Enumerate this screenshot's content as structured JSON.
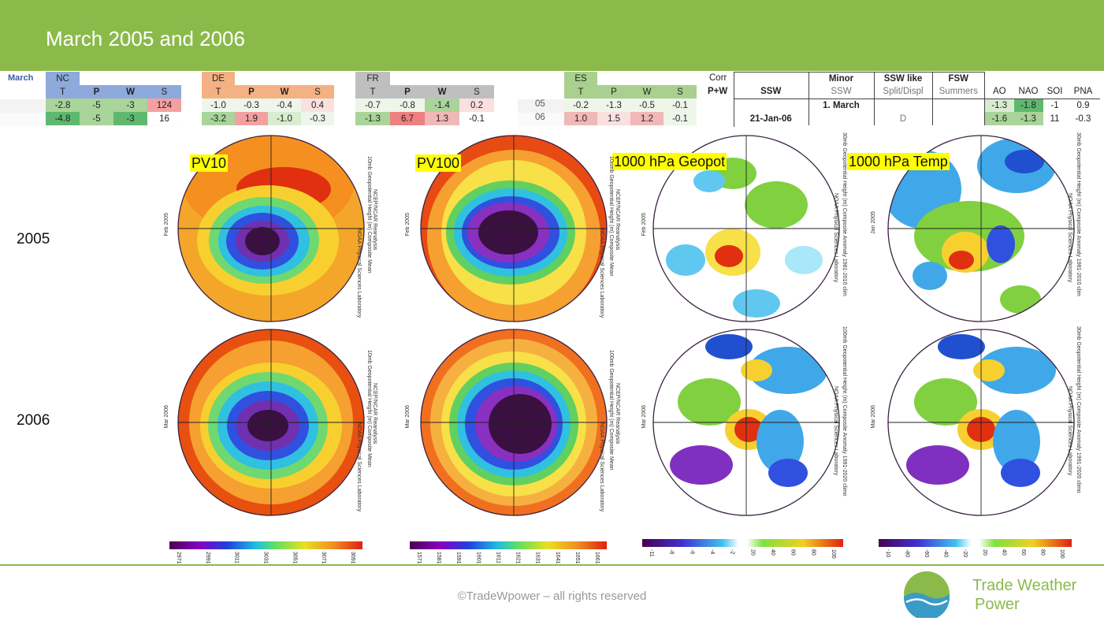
{
  "title": "March 2005 and 2006",
  "tables": {
    "nc": {
      "month_label": "March",
      "region": "NC",
      "cols": [
        "T",
        "P",
        "W",
        "S"
      ],
      "rows": [
        {
          "year": "05",
          "vals": [
            "-2.8",
            "-5",
            "-3",
            "124"
          ]
        },
        {
          "year": "06",
          "vals": [
            "-4.8",
            "-5",
            "-3",
            "16"
          ]
        }
      ]
    },
    "de": {
      "region": "DE",
      "cols": [
        "T",
        "P",
        "W",
        "S"
      ],
      "rows": [
        {
          "vals": [
            "-1.0",
            "-0.3",
            "-0.4",
            "0.4"
          ]
        },
        {
          "vals": [
            "-3.2",
            "1.9",
            "-1.0",
            "-0.3"
          ]
        }
      ]
    },
    "fr": {
      "region": "FR",
      "cols": [
        "T",
        "P",
        "W",
        "S"
      ],
      "rows": [
        {
          "vals": [
            "-0.7",
            "-0.8",
            "-1.4",
            "0.2"
          ]
        },
        {
          "vals": [
            "-1.3",
            "6.7",
            "1.3",
            "-0.1"
          ]
        }
      ]
    },
    "es": {
      "region": "ES",
      "cols": [
        "T",
        "P",
        "W",
        "S"
      ],
      "rows": [
        {
          "year": "05",
          "vals": [
            "-0.2",
            "-1.3",
            "-0.5",
            "-0.1"
          ]
        },
        {
          "year": "06",
          "vals": [
            "1.0",
            "1.5",
            "1.2",
            "-0.1"
          ]
        }
      ]
    },
    "corr": {
      "line1": "Corr",
      "line2": "P+W"
    },
    "ssw": {
      "headers": [
        "SSW",
        "Minor",
        "SSW like",
        "FSW"
      ],
      "sub": [
        "SSW",
        "SSW",
        "Split/Displ",
        "Summers"
      ],
      "row1": [
        "",
        "1. March",
        "",
        ""
      ],
      "row2": [
        "21-Jan-06",
        "",
        "D",
        ""
      ]
    },
    "indices": {
      "cols": [
        "AO",
        "NAO",
        "SOI",
        "PNA"
      ],
      "rows": [
        [
          "-1.3",
          "-1.8",
          "-1",
          "0.9"
        ],
        [
          "-1.6",
          "-1.3",
          "11",
          "-0.3"
        ]
      ]
    }
  },
  "rows": [
    "2005",
    "2006"
  ],
  "maps": {
    "titles": [
      "PV10",
      "PV100",
      "1000 hPa Geopot",
      "1000 hPa Temp"
    ],
    "dates": [
      [
        "Feb 2005",
        "Feb 2005",
        "Feb 2005",
        "Jan 2005"
      ],
      [
        "Mar 2006",
        "Mar 2006",
        "Mar 2006",
        "Mar 2006"
      ]
    ],
    "side_texts": [
      [
        "10mb Geopotential Height (m) Composite Mean",
        "10omb Geopotential Height (m) Composite Mean",
        "30mb Geopotential Height (m) Composite Anomaly 1981-2010 clim",
        "30mb Geopotential Height (m) Composite Anomaly 1981-2010 clim"
      ],
      [
        "10mb Geopotential Height (m) Composite Mean",
        "100mb Geopotential Height (m) Composite Mean",
        "100mb Geopotential Height (m) Composite Anomaly 1991-2020 climo",
        "30mb Geopotential Height (m) Composite Anomaly 1991-2020 climo"
      ]
    ],
    "reanalysis": "NCEP/NCAR Reanalysis",
    "lab": "NOAA Physical Sciences Laboratory"
  },
  "colorbars": [
    [
      "2971",
      "2991",
      "3011",
      "3031",
      "3051",
      "3071",
      "3091"
    ],
    [
      "1571",
      "1581",
      "1591",
      "1601",
      "1611",
      "1621",
      "1631",
      "1641",
      "1651",
      "1661"
    ],
    [
      "-11",
      "-8",
      "-6",
      "-4",
      "-2",
      "20",
      "40",
      "60",
      "80",
      "100"
    ],
    [
      "-10",
      "-80",
      "-60",
      "-40",
      "-20",
      "20",
      "40",
      "60",
      "80",
      "100"
    ]
  ],
  "footer": "©TradeWpower – all rights reserved",
  "brand": {
    "line1": "Trade Weather",
    "line2": "Power"
  },
  "colors": {
    "accent": "#8bba4b"
  }
}
